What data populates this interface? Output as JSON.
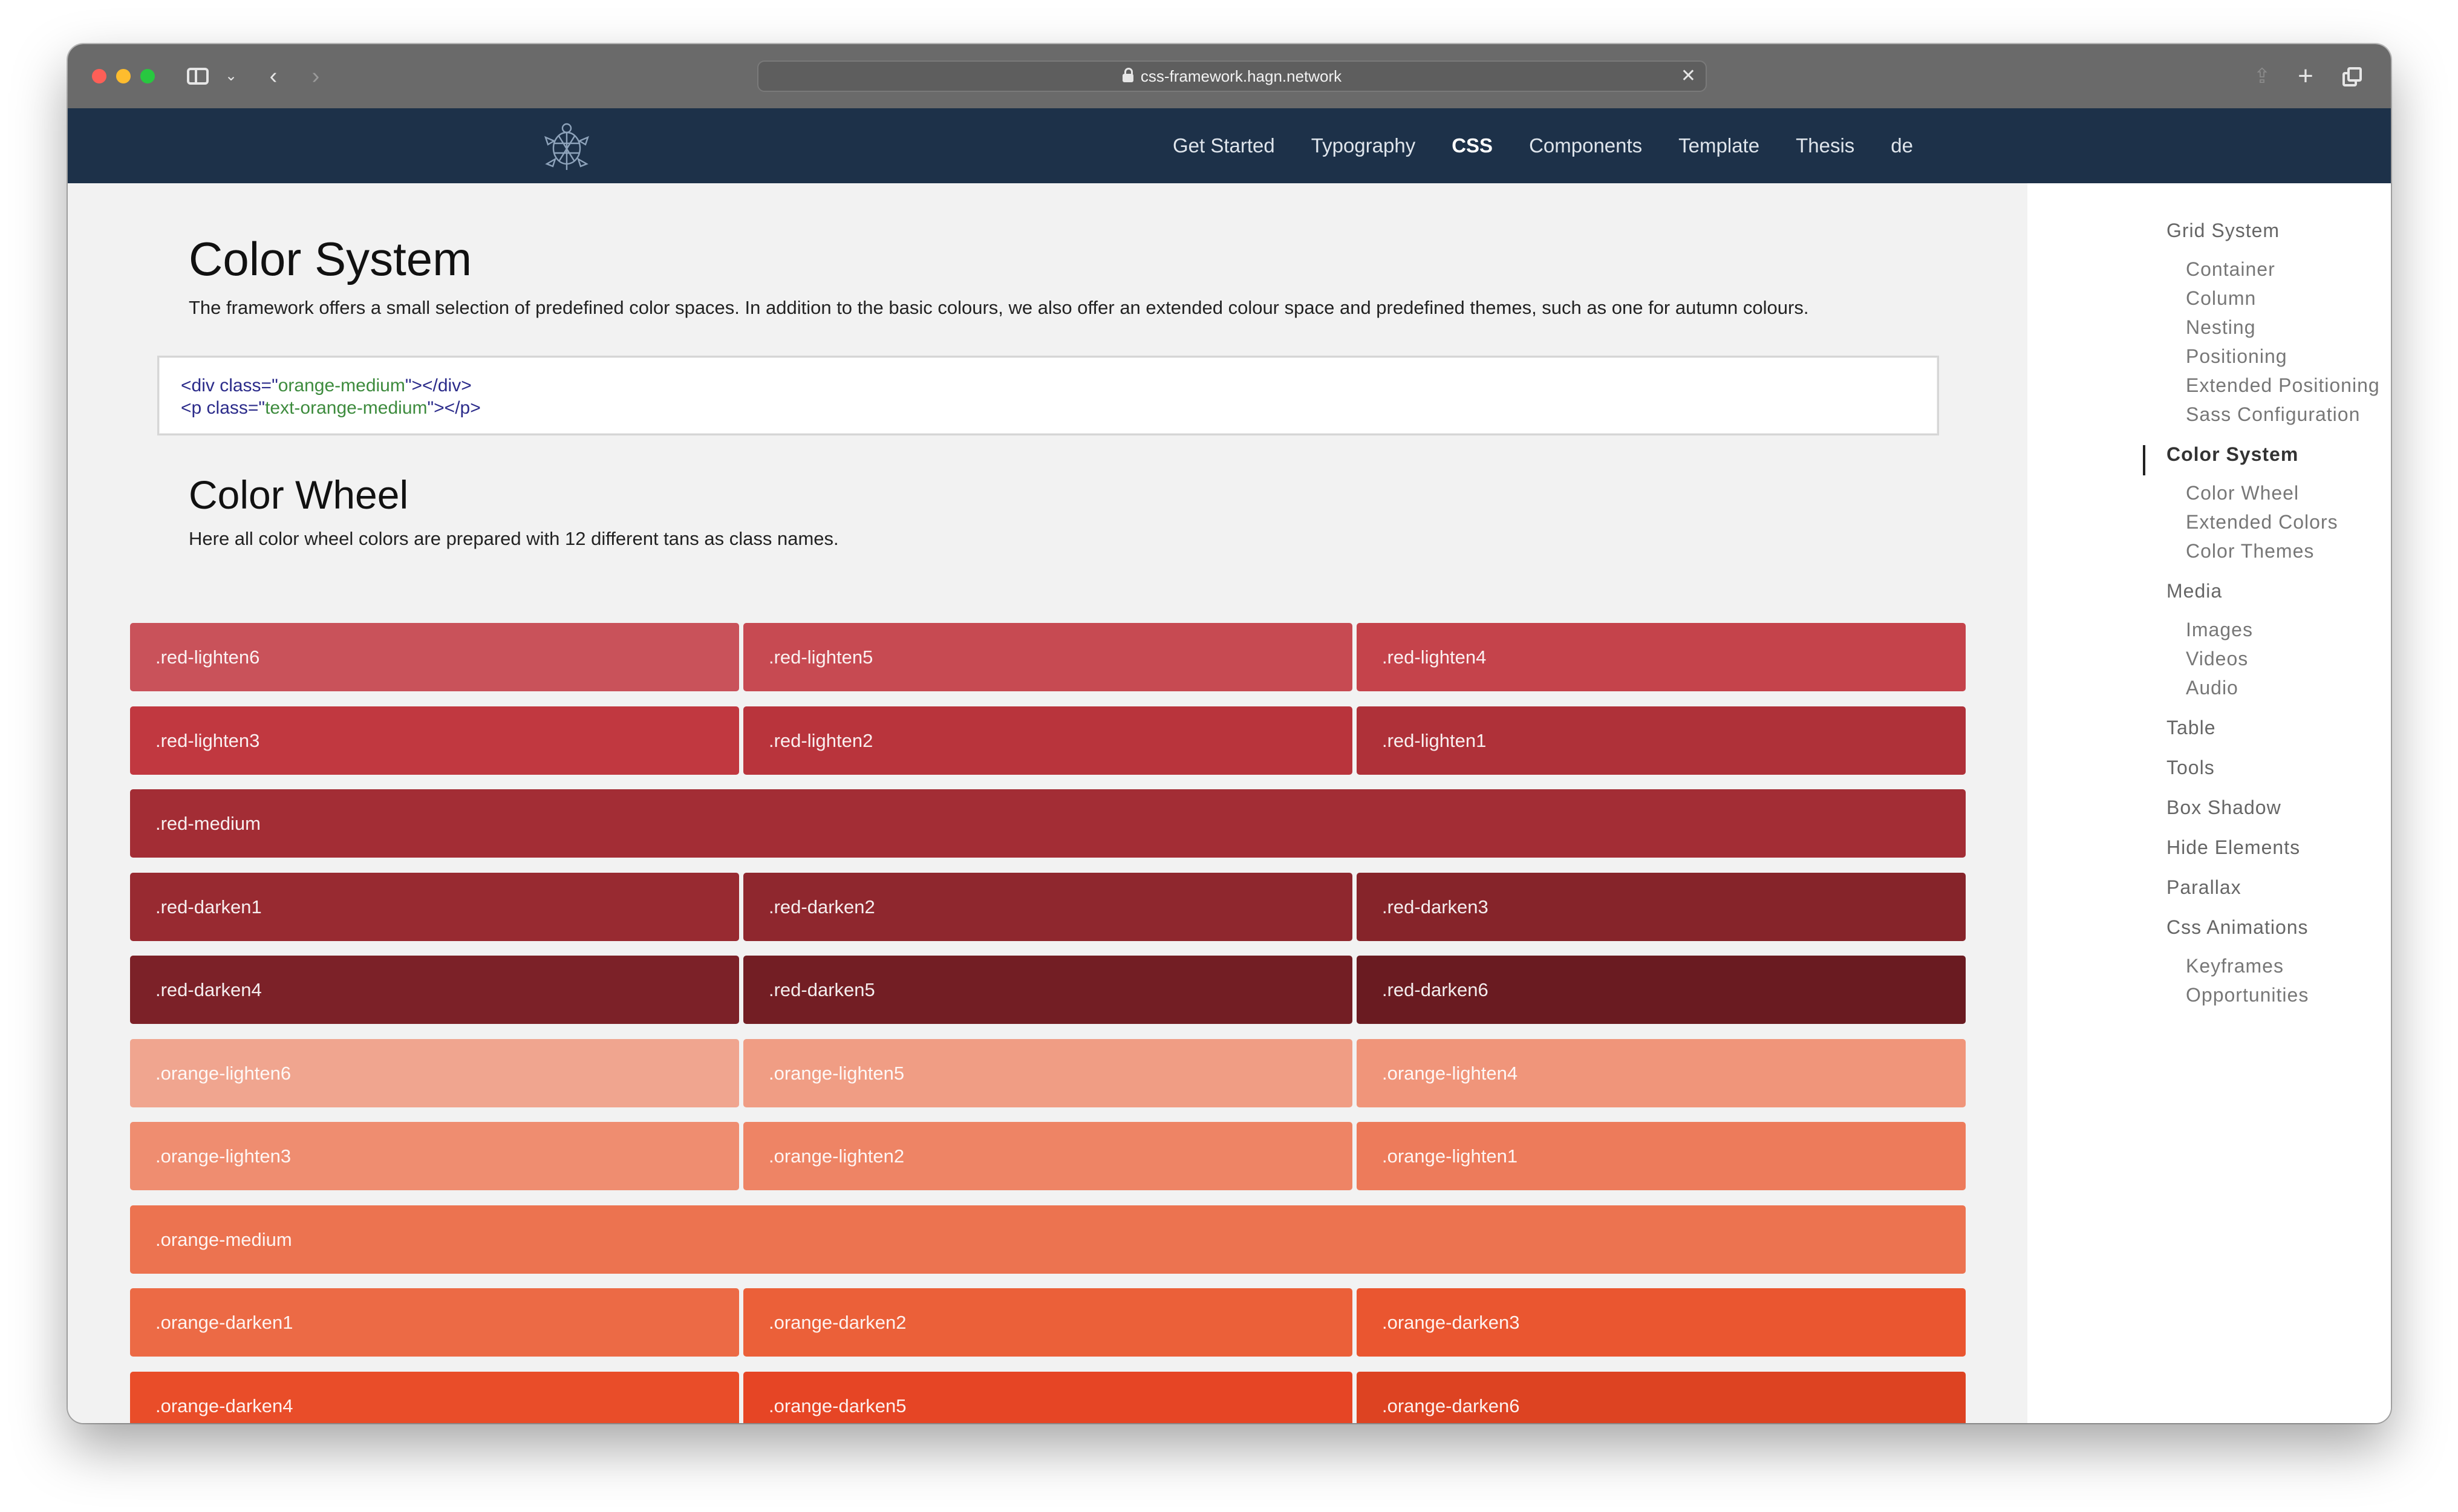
{
  "browser": {
    "url": "css-framework.hagn.network"
  },
  "header": {
    "nav": [
      {
        "label": "Get Started",
        "active": false
      },
      {
        "label": "Typography",
        "active": false
      },
      {
        "label": "CSS",
        "active": true
      },
      {
        "label": "Components",
        "active": false
      },
      {
        "label": "Template",
        "active": false
      },
      {
        "label": "Thesis",
        "active": false
      },
      {
        "label": "de",
        "active": false
      }
    ]
  },
  "main": {
    "title": "Color System",
    "intro": "The framework offers a small selection of predefined color spaces. In addition to the basic colours, we also offer an extended colour space and predefined themes, such as one for autumn colours.",
    "code": {
      "line1_open": "<div class=\"",
      "line1_value": "orange-medium",
      "line1_close": "\"></div>",
      "line2_open": "<p class=\"",
      "line2_value": "text-orange-medium",
      "line2_close": "\"></p>"
    },
    "wheel_title": "Color Wheel",
    "wheel_intro": "Here all color wheel colors are prepared with 12 different tans as class names.",
    "swatch_rows": [
      [
        {
          "label": ".red-lighten6",
          "color": "#c9525a"
        },
        {
          "label": ".red-lighten5",
          "color": "#c74a52"
        },
        {
          "label": ".red-lighten4",
          "color": "#c5434b"
        }
      ],
      [
        {
          "label": ".red-lighten3",
          "color": "#c13840"
        },
        {
          "label": ".red-lighten2",
          "color": "#b9343c"
        },
        {
          "label": ".red-lighten1",
          "color": "#af3139"
        }
      ],
      [
        {
          "label": ".red-medium",
          "color": "#a32d35"
        }
      ],
      [
        {
          "label": ".red-darken1",
          "color": "#982a31"
        },
        {
          "label": ".red-darken2",
          "color": "#8f272e"
        },
        {
          "label": ".red-darken3",
          "color": "#86242a"
        }
      ],
      [
        {
          "label": ".red-darken4",
          "color": "#7c2128"
        },
        {
          "label": ".red-darken5",
          "color": "#731e24"
        },
        {
          "label": ".red-darken6",
          "color": "#6a1b21"
        }
      ],
      [
        {
          "label": ".orange-lighten6",
          "color": "#f0a58f"
        },
        {
          "label": ".orange-lighten5",
          "color": "#f09d84"
        },
        {
          "label": ".orange-lighten4",
          "color": "#f0957a"
        }
      ],
      [
        {
          "label": ".orange-lighten3",
          "color": "#ef8d70"
        },
        {
          "label": ".orange-lighten2",
          "color": "#ee8465"
        },
        {
          "label": ".orange-lighten1",
          "color": "#ed7b5b"
        }
      ],
      [
        {
          "label": ".orange-medium",
          "color": "#ec7350"
        }
      ],
      [
        {
          "label": ".orange-darken1",
          "color": "#ec6a45"
        },
        {
          "label": ".orange-darken2",
          "color": "#eb6039"
        },
        {
          "label": ".orange-darken3",
          "color": "#ea5630"
        }
      ],
      [
        {
          "label": ".orange-darken4",
          "color": "#e94d29"
        },
        {
          "label": ".orange-darken5",
          "color": "#e64525"
        },
        {
          "label": ".orange-darken6",
          "color": "#dd4322"
        }
      ]
    ]
  },
  "toc": {
    "items": [
      {
        "label": "Grid System",
        "level": 1
      },
      {
        "label": "Container",
        "level": 2
      },
      {
        "label": "Column",
        "level": 2
      },
      {
        "label": "Nesting",
        "level": 2
      },
      {
        "label": "Positioning",
        "level": 2
      },
      {
        "label": "Extended Positioning",
        "level": 2
      },
      {
        "label": "Sass Configuration",
        "level": 2
      },
      {
        "label": "Color System",
        "level": 1,
        "active": true
      },
      {
        "label": "Color Wheel",
        "level": 2
      },
      {
        "label": "Extended Colors",
        "level": 2
      },
      {
        "label": "Color Themes",
        "level": 2
      },
      {
        "label": "Media",
        "level": 1
      },
      {
        "label": "Images",
        "level": 2
      },
      {
        "label": "Videos",
        "level": 2
      },
      {
        "label": "Audio",
        "level": 2
      },
      {
        "label": "Table",
        "level": 1
      },
      {
        "label": "Tools",
        "level": 1
      },
      {
        "label": "Box Shadow",
        "level": 1
      },
      {
        "label": "Hide Elements",
        "level": 1
      },
      {
        "label": "Parallax",
        "level": 1
      },
      {
        "label": "Css Animations",
        "level": 1
      },
      {
        "label": "Keyframes",
        "level": 2
      },
      {
        "label": "Opportunities",
        "level": 2
      }
    ]
  }
}
